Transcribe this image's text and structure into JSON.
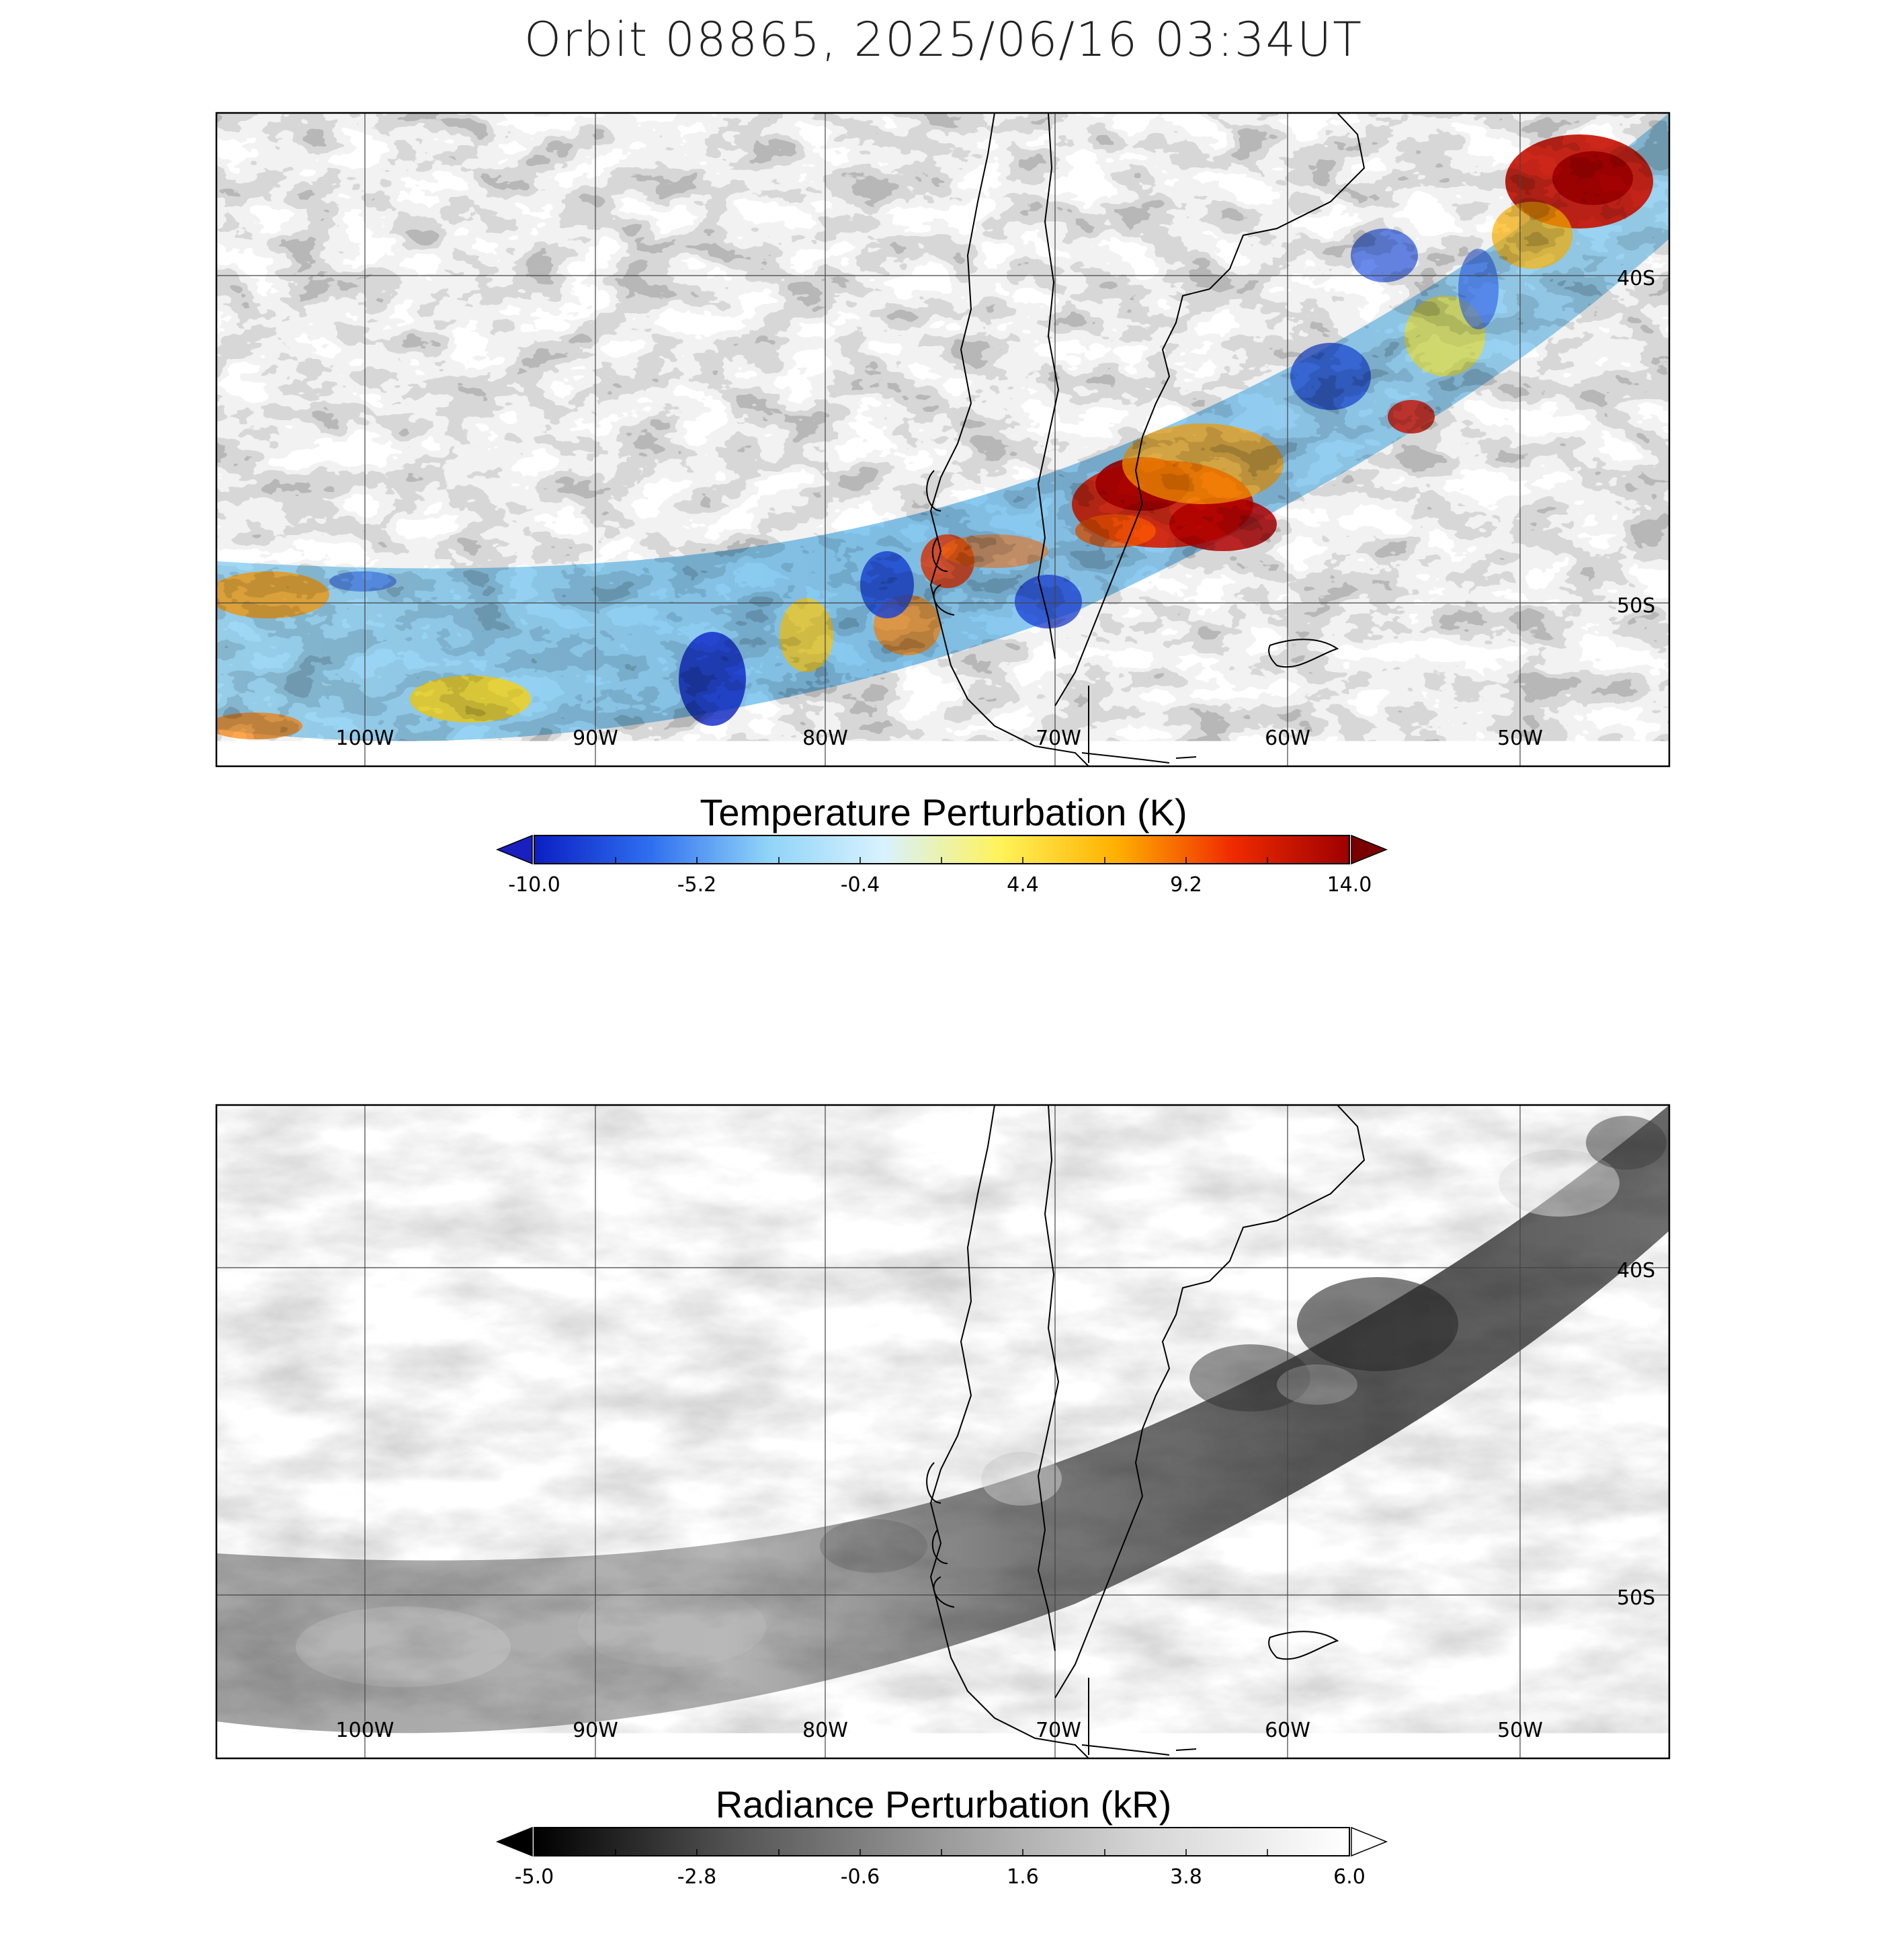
{
  "title": "Orbit 08865, 2025/06/16 03:34UT",
  "longitude_labels": [
    "100W",
    "90W",
    "80W",
    "70W",
    "60W",
    "50W"
  ],
  "latitude_labels": [
    "40S",
    "50S"
  ],
  "panels": [
    {
      "name": "temperature",
      "colorbar_title": "Temperature Perturbation (K)",
      "colorbar_ticks": [
        "-10.0",
        "-5.2",
        "-0.4",
        "4.4",
        "9.2",
        "14.0"
      ],
      "colormap": [
        "#0b1fc2",
        "#2f6ff0",
        "#8fd3f8",
        "#d8f2ff",
        "#fff35a",
        "#ffb000",
        "#f02a00",
        "#9e0000"
      ]
    },
    {
      "name": "radiance",
      "colorbar_title": "Radiance Perturbation (kR)",
      "colorbar_ticks": [
        "-5.0",
        "-2.8",
        "-0.6",
        "1.6",
        "3.8",
        "6.0"
      ],
      "colormap": [
        "#000000",
        "#555555",
        "#9a9a9a",
        "#d6d6d6",
        "#ffffff"
      ]
    }
  ],
  "colors": {
    "frame": "#000000",
    "grid": "#444444",
    "coast": "#000000"
  }
}
